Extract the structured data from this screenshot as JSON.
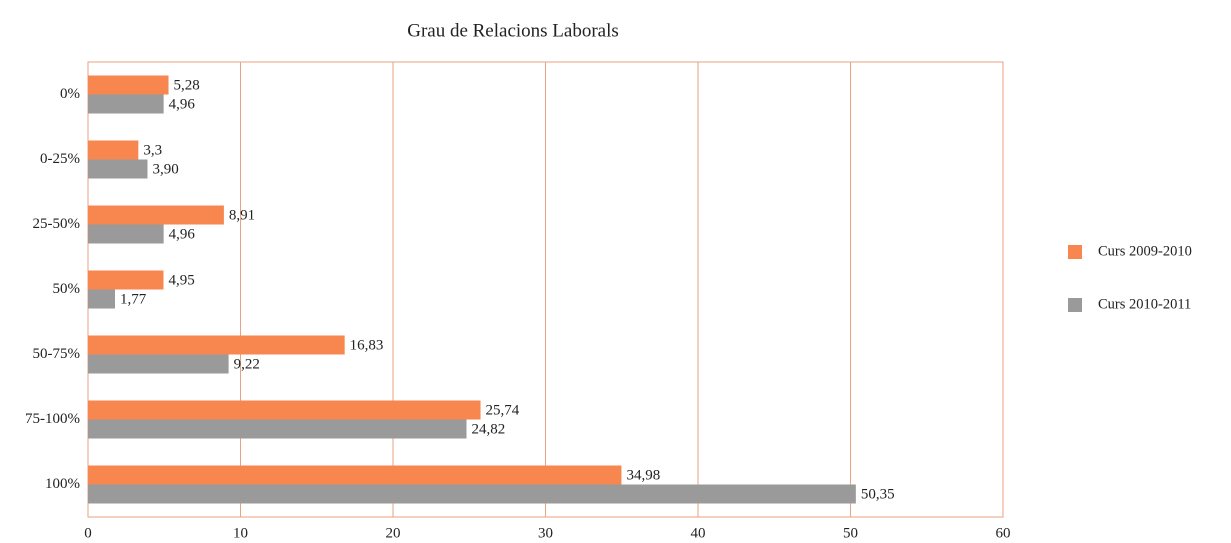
{
  "chart_data": {
    "type": "bar",
    "orientation": "horizontal",
    "title": "Grau de Relacions Laborals",
    "categories": [
      "0%",
      "0-25%",
      "25-50%",
      "50%",
      "50-75%",
      "75-100%",
      "100%"
    ],
    "series": [
      {
        "name": "Curs 2009-2010",
        "color": "#f7864f",
        "values": [
          5.28,
          3.3,
          8.91,
          4.95,
          16.83,
          25.74,
          34.98
        ],
        "value_labels": [
          "5,28",
          "3,3",
          "8,91",
          "4,95",
          "16,83",
          "25,74",
          "34,98"
        ]
      },
      {
        "name": "Curs 2010-2011",
        "color": "#9a9a9a",
        "values": [
          4.96,
          3.9,
          4.96,
          1.77,
          9.22,
          24.82,
          50.35
        ],
        "value_labels": [
          "4,96",
          "3,90",
          "4,96",
          "1,77",
          "9,22",
          "24,82",
          "50,35"
        ]
      }
    ],
    "xlim": [
      0,
      60
    ],
    "xticks": [
      0,
      10,
      20,
      30,
      40,
      50,
      60
    ],
    "grid": true,
    "legend": "right"
  }
}
